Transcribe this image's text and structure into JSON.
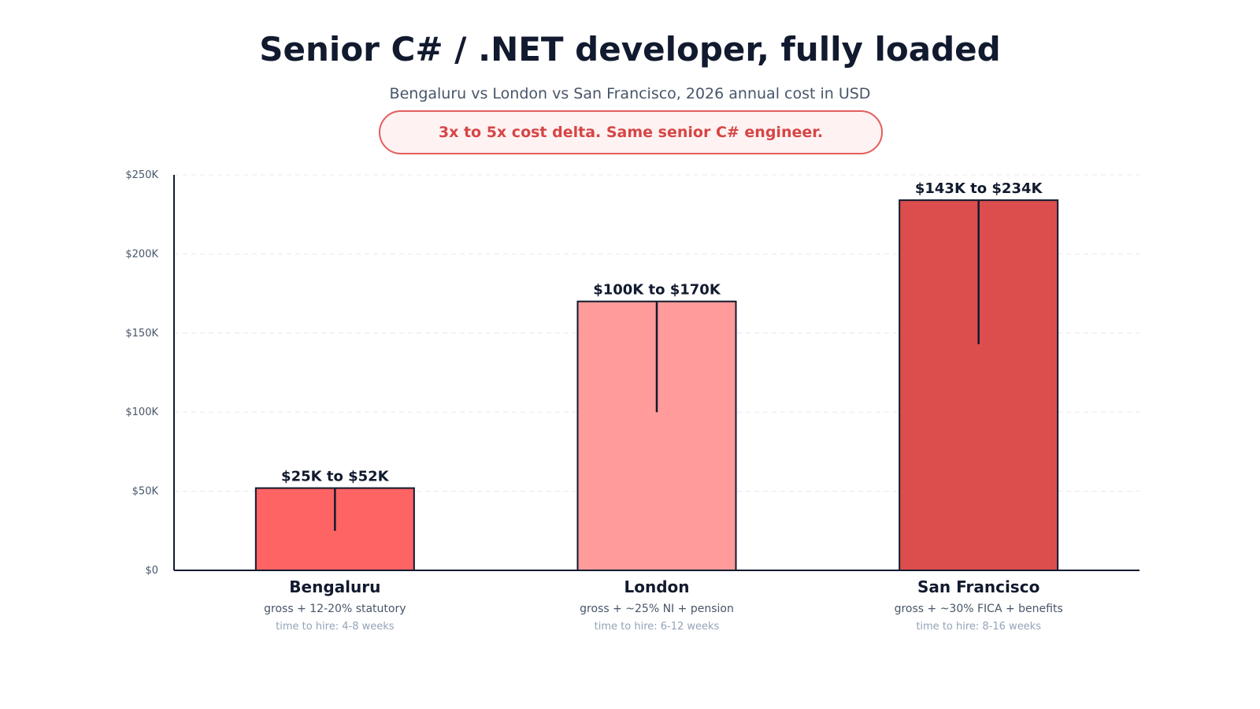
{
  "title": "Senior C# / .NET developer, fully loaded",
  "subtitle": "Bengaluru vs London vs San Francisco, 2026 annual cost in USD",
  "callout": "3x to 5x cost delta. Same senior C# engineer.",
  "chart_data": {
    "type": "bar",
    "title": "Senior C# / .NET developer, fully loaded",
    "subtitle": "Bengaluru vs London vs San Francisco, 2026 annual cost in USD",
    "categories": [
      "Bengaluru",
      "London",
      "San Francisco"
    ],
    "values": [
      52,
      170,
      234
    ],
    "range_low": [
      25,
      100,
      143
    ],
    "range_high": [
      52,
      170,
      234
    ],
    "value_labels": [
      "$25K to $52K",
      "$100K to $170K",
      "$143K to $234K"
    ],
    "notes": [
      "gross + 12-20% statutory",
      "gross + ~25% NI + pension",
      "gross + ~30% FICA + benefits"
    ],
    "hire_times": [
      "time to hire: 4-8 weeks",
      "time to hire: 6-12 weeks",
      "time to hire: 8-16 weeks"
    ],
    "colors": [
      "#ff6464",
      "#ff9b9b",
      "#dc4e4e"
    ],
    "ylim": [
      0,
      250
    ],
    "yticks": [
      0,
      50,
      100,
      150,
      200,
      250
    ],
    "ytick_labels": [
      "$0",
      "$50K",
      "$100K",
      "$150K",
      "$200K",
      "$250K"
    ],
    "xlabel": "",
    "ylabel": "",
    "grid": true
  }
}
